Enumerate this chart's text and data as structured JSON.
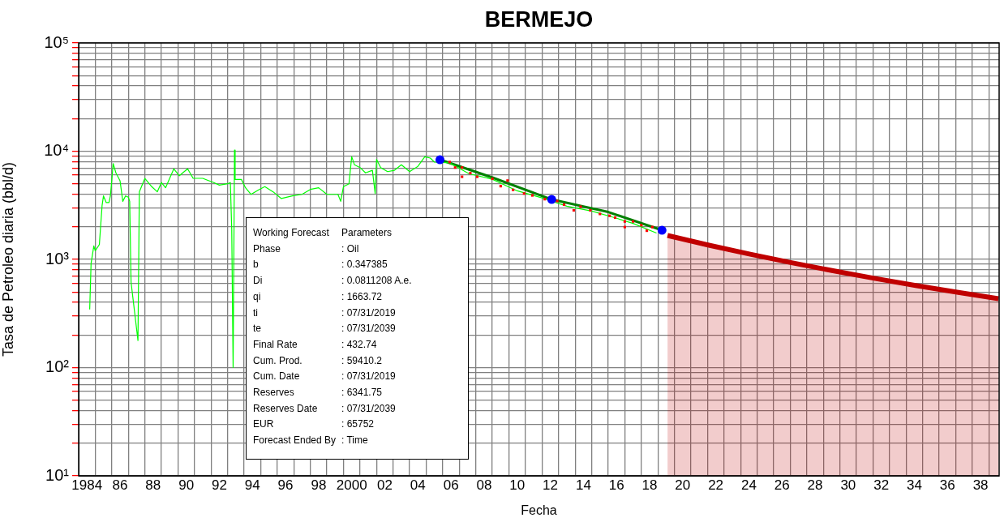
{
  "chart_data": {
    "type": "line",
    "title": "BERMEJO",
    "xlabel": "Fecha",
    "ylabel": "Tasa de Petroleo diaria (bbl/d)",
    "log": "y",
    "grid": true,
    "legend": false,
    "xlim": [
      "1984-01-01",
      "2039-08-15"
    ],
    "ylim": [
      10,
      100000
    ],
    "xticks": [
      {
        "value": "1984-07",
        "label": "1984"
      },
      {
        "value": "1985",
        "label": null
      },
      {
        "value": "1986",
        "label": null
      },
      {
        "value": "1986-07",
        "label": "86"
      },
      {
        "value": "1987",
        "label": null
      },
      {
        "value": "1988",
        "label": null
      },
      {
        "value": "1988-07",
        "label": "88"
      },
      {
        "value": "1989",
        "label": null
      },
      {
        "value": "1990",
        "label": null
      },
      {
        "value": "1990-07",
        "label": "90"
      },
      {
        "value": "1991",
        "label": null
      },
      {
        "value": "1992",
        "label": null
      },
      {
        "value": "1992-07",
        "label": "92"
      },
      {
        "value": "1993",
        "label": null
      },
      {
        "value": "1994",
        "label": null
      },
      {
        "value": "1994-07",
        "label": "94"
      },
      {
        "value": "1995",
        "label": null
      },
      {
        "value": "1996",
        "label": null
      },
      {
        "value": "1996-07",
        "label": "96"
      },
      {
        "value": "1997",
        "label": null
      },
      {
        "value": "1998",
        "label": null
      },
      {
        "value": "1998-07",
        "label": "98"
      },
      {
        "value": "1999",
        "label": null
      },
      {
        "value": "2000",
        "label": null
      },
      {
        "value": "2000-07",
        "label": "2000"
      },
      {
        "value": "2001",
        "label": null
      },
      {
        "value": "2002",
        "label": null
      },
      {
        "value": "2002-07",
        "label": "02"
      },
      {
        "value": "2003",
        "label": null
      },
      {
        "value": "2004",
        "label": null
      },
      {
        "value": "2004-07",
        "label": "04"
      },
      {
        "value": "2005",
        "label": null
      },
      {
        "value": "2006",
        "label": null
      },
      {
        "value": "2006-07",
        "label": "06"
      },
      {
        "value": "2007",
        "label": null
      },
      {
        "value": "2008",
        "label": null
      },
      {
        "value": "2008-07",
        "label": "08"
      },
      {
        "value": "2009",
        "label": null
      },
      {
        "value": "2010",
        "label": null
      },
      {
        "value": "2010-07",
        "label": "10"
      },
      {
        "value": "2011",
        "label": null
      },
      {
        "value": "2012",
        "label": null
      },
      {
        "value": "2012-07",
        "label": "12"
      },
      {
        "value": "2013",
        "label": null
      },
      {
        "value": "2014",
        "label": null
      },
      {
        "value": "2014-07",
        "label": "14"
      },
      {
        "value": "2015",
        "label": null
      },
      {
        "value": "2016",
        "label": null
      },
      {
        "value": "2016-07",
        "label": "16"
      },
      {
        "value": "2017",
        "label": null
      },
      {
        "value": "2018",
        "label": null
      },
      {
        "value": "2018-07",
        "label": "18"
      },
      {
        "value": "2019",
        "label": null
      },
      {
        "value": "2020",
        "label": null
      },
      {
        "value": "2020-07",
        "label": "20"
      },
      {
        "value": "2021",
        "label": null
      },
      {
        "value": "2022",
        "label": null
      },
      {
        "value": "2022-07",
        "label": "22"
      },
      {
        "value": "2023",
        "label": null
      },
      {
        "value": "2024",
        "label": null
      },
      {
        "value": "2024-07",
        "label": "24"
      },
      {
        "value": "2025",
        "label": null
      },
      {
        "value": "2026",
        "label": null
      },
      {
        "value": "2026-07",
        "label": "26"
      },
      {
        "value": "2027",
        "label": null
      },
      {
        "value": "2028",
        "label": null
      },
      {
        "value": "2028-07",
        "label": "28"
      },
      {
        "value": "2029",
        "label": null
      },
      {
        "value": "2030",
        "label": null
      },
      {
        "value": "2030-07",
        "label": "30"
      },
      {
        "value": "2031",
        "label": null
      },
      {
        "value": "2032",
        "label": null
      },
      {
        "value": "2032-07",
        "label": "32"
      },
      {
        "value": "2033",
        "label": null
      },
      {
        "value": "2034",
        "label": null
      },
      {
        "value": "2034-07",
        "label": "34"
      },
      {
        "value": "2035",
        "label": null
      },
      {
        "value": "2036",
        "label": null
      },
      {
        "value": "2036-07",
        "label": "36"
      },
      {
        "value": "2037",
        "label": null
      },
      {
        "value": "2038",
        "label": null
      },
      {
        "value": "2038-07",
        "label": "38"
      },
      {
        "value": "2039",
        "label": null
      }
    ],
    "yticks": [
      {
        "value": 10,
        "label": "10¹"
      },
      {
        "value": 20,
        "label": null
      },
      {
        "value": 30,
        "label": null
      },
      {
        "value": 40,
        "label": null
      },
      {
        "value": 50,
        "label": null
      },
      {
        "value": 60,
        "label": null
      },
      {
        "value": 70,
        "label": null
      },
      {
        "value": 80,
        "label": null
      },
      {
        "value": 90,
        "label": null
      },
      {
        "value": 100,
        "label": "10²"
      },
      {
        "value": 200,
        "label": null
      },
      {
        "value": 300,
        "label": null
      },
      {
        "value": 400,
        "label": null
      },
      {
        "value": 500,
        "label": null
      },
      {
        "value": 600,
        "label": null
      },
      {
        "value": 700,
        "label": null
      },
      {
        "value": 800,
        "label": null
      },
      {
        "value": 900,
        "label": null
      },
      {
        "value": 1000,
        "label": "10³"
      },
      {
        "value": 2000,
        "label": null
      },
      {
        "value": 3000,
        "label": null
      },
      {
        "value": 4000,
        "label": null
      },
      {
        "value": 5000,
        "label": null
      },
      {
        "value": 6000,
        "label": null
      },
      {
        "value": 7000,
        "label": null
      },
      {
        "value": 8000,
        "label": null
      },
      {
        "value": 9000,
        "label": null
      },
      {
        "value": 10000,
        "label": "10⁴"
      },
      {
        "value": 20000,
        "label": null
      },
      {
        "value": 30000,
        "label": null
      },
      {
        "value": 40000,
        "label": null
      },
      {
        "value": 50000,
        "label": null
      },
      {
        "value": 60000,
        "label": null
      },
      {
        "value": 70000,
        "label": null
      },
      {
        "value": 80000,
        "label": null
      },
      {
        "value": 90000,
        "label": null
      },
      {
        "value": 100000,
        "label": "10⁵"
      }
    ],
    "series": [
      {
        "color": "#00ff00",
        "marker": "none",
        "x": [
          "1984-09",
          "1984-10",
          "1984-12",
          "1985-01",
          "1985-04",
          "1985-06",
          "1985-07",
          "1985-09",
          "1985-11",
          "1985-12",
          "1986-01",
          "1986-02",
          "1986-04",
          "1986-07",
          "1986-09",
          "1986-11",
          "1987-01",
          "1987-02",
          "1987-03",
          "1987-08",
          "1987-09",
          "1988-01",
          "1988-06",
          "1988-10",
          "1989-01",
          "1989-04",
          "1989-10",
          "1990-02",
          "1990-08",
          "1990-12",
          "1991-07",
          "1992-03",
          "1992-07",
          "1993-01",
          "1993-03",
          "1993-04",
          "1993-05",
          "1993-06-01",
          "1993-06-15",
          "1993-11",
          "1994-02",
          "1994-06",
          "1994-12",
          "1995-04",
          "1995-10",
          "1996-04",
          "1996-12",
          "1997-07",
          "1998-01",
          "1998-07",
          "1999-01",
          "1999-09",
          "1999-11",
          "2000-01",
          "2000-05",
          "2000-07",
          "2000-09",
          "2001-01",
          "2001-05",
          "2001-10",
          "2001-12",
          "2002-01",
          "2002-04",
          "2002-09",
          "2003-02",
          "2003-07",
          "2004-01",
          "2004-07",
          "2004-12",
          "2005-04",
          "2005-07",
          "2006-06",
          "2007-08",
          "2009-01",
          "2010-07",
          "2012-01",
          "2013-07",
          "2015-01",
          "2016-07",
          "2017-07",
          "2018-12"
        ],
        "values": [
          345,
          918,
          1334,
          1200,
          1370,
          3160,
          3860,
          3350,
          3350,
          3860,
          5330,
          7690,
          6300,
          5330,
          3440,
          3860,
          3760,
          3440,
          614,
          178,
          4210,
          5610,
          4700,
          4210,
          5130,
          4590,
          6870,
          5930,
          6870,
          5610,
          5610,
          5130,
          4860,
          5000,
          5130,
          1885,
          100,
          10260,
          5480,
          5480,
          4590,
          3990,
          4430,
          4700,
          4210,
          3650,
          3860,
          3990,
          4430,
          4590,
          3990,
          3990,
          3440,
          4700,
          5000,
          8890,
          7480,
          7060,
          6300,
          6660,
          4060,
          8390,
          7060,
          6470,
          6660,
          7480,
          6470,
          7250,
          8890,
          8640,
          7920,
          7800,
          6200,
          5500,
          4300,
          3700,
          3100,
          2800,
          2400,
          2150,
          1750
        ]
      },
      {
        "type": "scatter",
        "color": "#ff0000",
        "marker": "square",
        "x": [
          "2006-06",
          "2006-10",
          "2007-03",
          "2007-03",
          "2007-09",
          "2008-02",
          "2009-01",
          "2009-07",
          "2009-12",
          "2010-04",
          "2010-12",
          "2011-06",
          "2012-03",
          "2012-12",
          "2013-05",
          "2013-12",
          "2014-05",
          "2014-12",
          "2015-07",
          "2016-02",
          "2016-06",
          "2017-01",
          "2017-01",
          "2017-07",
          "2018-01",
          "2018-05",
          "2018-09"
        ],
        "values": [
          7940,
          7060,
          7060,
          5800,
          6270,
          5800,
          5560,
          4750,
          5350,
          4390,
          4060,
          3900,
          3600,
          3460,
          3200,
          2840,
          3070,
          2840,
          2630,
          2530,
          2430,
          2240,
          1990,
          2240,
          2070,
          1840,
          1990
        ]
      },
      {
        "color": "#008000",
        "marker": "none",
        "x": [
          "2005-11",
          "2009-01",
          "2012-08",
          "2016-01",
          "2019-04"
        ],
        "values": [
          8340,
          5710,
          3580,
          2740,
          1860
        ]
      },
      {
        "type": "scatter",
        "color": "#0000ff",
        "marker": "circle",
        "x": [
          "2005-11",
          "2012-08",
          "2019-04"
        ],
        "values": [
          8340,
          3580,
          1860
        ]
      },
      {
        "type": "area",
        "color": "#c00000",
        "marker": "none",
        "x": [
          "2019-07-31",
          "2022-01-31",
          "2024-07-31",
          "2027-01-31",
          "2029-07-31",
          "2032-01-31",
          "2034-07-31",
          "2037-01-31",
          "2039-07-31"
        ],
        "values": [
          1663.72,
          1352.6,
          1115,
          930.6,
          785,
          668,
          574,
          496.8,
          432.74
        ]
      }
    ],
    "annotations": [
      "Working Forecast",
      "Parameters",
      "Phase",
      ": Oil",
      "b",
      ": 0.347385",
      "Di",
      ": 0.0811208 A.e.",
      "qi",
      ": 1663.72",
      "ti",
      ": 07/31/2019",
      "te",
      ": 07/31/2039",
      "Final Rate",
      ": 432.74",
      "Cum. Prod.",
      ": 59410.2",
      "Cum. Date",
      ": 07/31/2019",
      "Reserves",
      ": 6341.75",
      "Reserves Date",
      ": 07/31/2039",
      "EUR",
      ": 65752",
      "Forecast Ended By",
      ": Time"
    ]
  }
}
